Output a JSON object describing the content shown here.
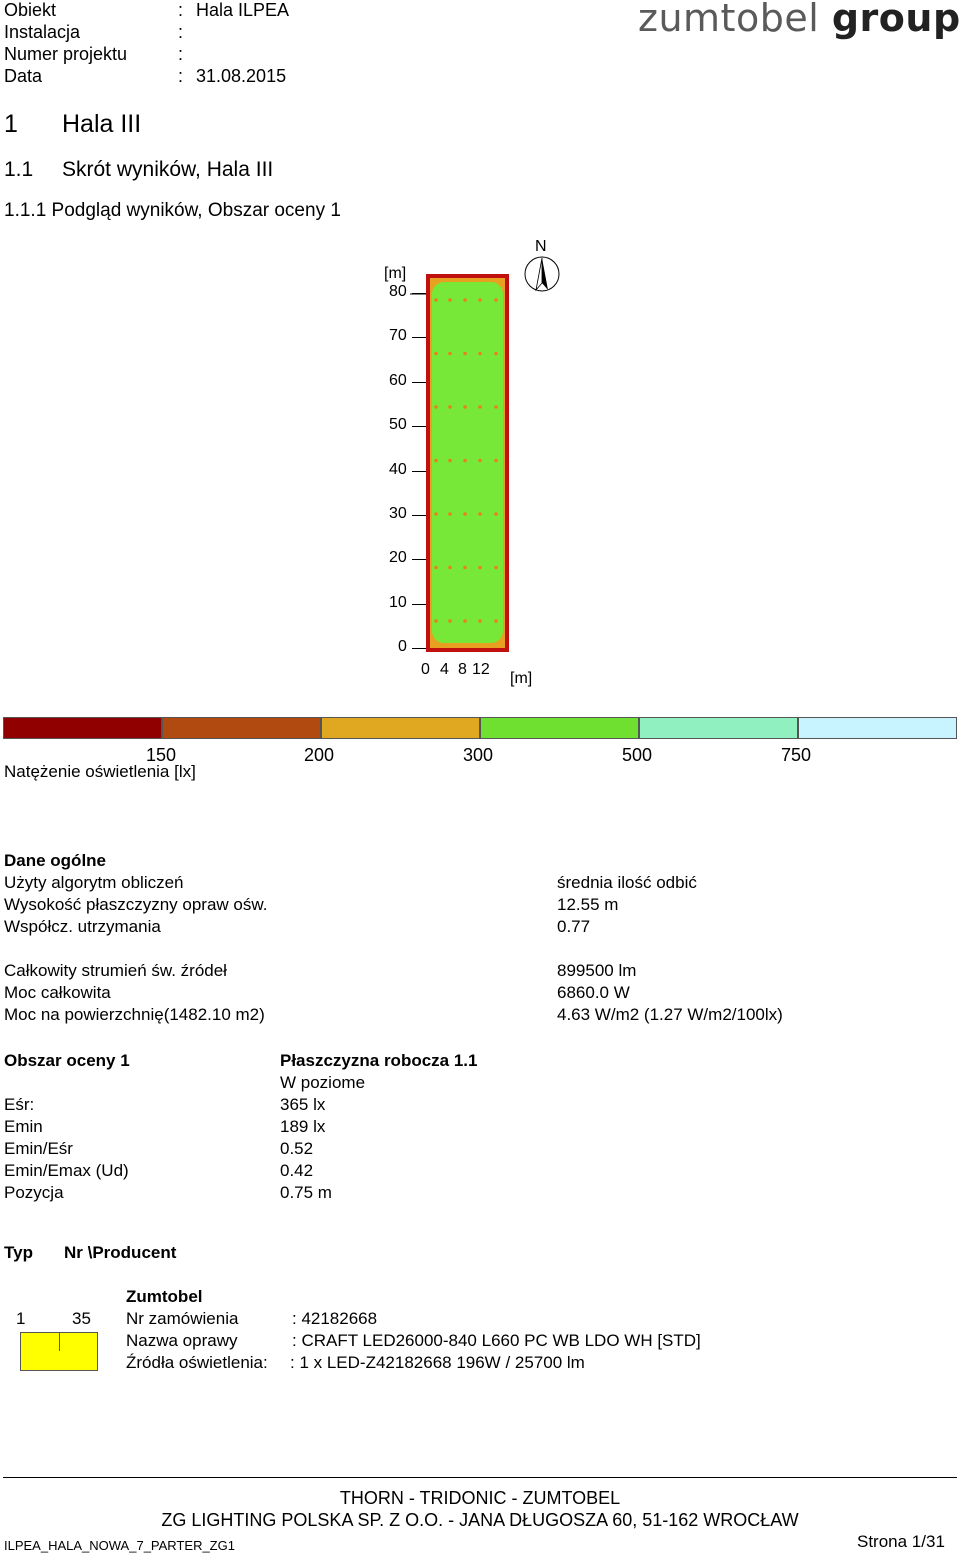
{
  "header": {
    "rows": [
      {
        "label": "Obiekt",
        "sep": ":",
        "value": "Hala ILPEA"
      },
      {
        "label": "Instalacja",
        "sep": ":",
        "value": ""
      },
      {
        "label": "Numer projektu",
        "sep": ":",
        "value": ""
      },
      {
        "label": "Data",
        "sep": ":",
        "value": "31.08.2015"
      }
    ],
    "logo_main": "zumtobel",
    "logo_group": "group"
  },
  "headings": {
    "h1_num": "1",
    "h1_text": "Hala III",
    "h2_num": "1.1",
    "h2_text": "Skrót wyników, Hala III",
    "h3": "1.1.1 Podgląd wyników, Obszar oceny 1"
  },
  "plan": {
    "y_unit": "[m]",
    "y_ticks": [
      "80",
      "70",
      "60",
      "50",
      "40",
      "30",
      "20",
      "10",
      "0"
    ],
    "x_ticks": [
      "0",
      "4",
      "8",
      "12"
    ],
    "x_unit": "[m]",
    "north": "N",
    "colors": {
      "border": "#c01010",
      "outer": "#e8a020",
      "inner": "#78e838"
    }
  },
  "legend": {
    "colors": [
      "#900000",
      "#b04a10",
      "#e0a820",
      "#70e030",
      "#90f0c0",
      "#c8f4ff"
    ],
    "labels": [
      "150",
      "200",
      "300",
      "500",
      "750"
    ],
    "title": "Natężenie oświetlenia [lx]"
  },
  "general": {
    "title": "Dane ogólne",
    "rows": [
      {
        "label": "Użyty algorytm obliczeń",
        "value": "średnia ilość odbić"
      },
      {
        "label": "Wysokość płaszczyzny opraw ośw.",
        "value": "12.55 m"
      },
      {
        "label": "Współcz. utrzymania",
        "value": "0.77"
      },
      {
        "label": "Całkowity strumień św. źródeł",
        "value": "899500 lm"
      },
      {
        "label": "Moc całkowita",
        "value": "6860.0 W"
      },
      {
        "label": "Moc na powierzchnię(1482.10 m2)",
        "value": "4.63 W/m2 (1.27 W/m2/100lx)"
      }
    ]
  },
  "area": {
    "title": "Obszar oceny 1",
    "plane_title": "Płaszczyzna robocza 1.1",
    "plane_sub": "W poziome",
    "rows": [
      {
        "label": "Eśr:",
        "value": "365 lx"
      },
      {
        "label": "Emin",
        "value": "189 lx"
      },
      {
        "label": "Emin/Eśr",
        "value": "0.52"
      },
      {
        "label": "Emin/Emax (Ud)",
        "value": "0.42"
      },
      {
        "label": "Pozycja",
        "value": "0.75 m"
      }
    ]
  },
  "luminaires": {
    "col_type": "Typ",
    "col_nr": "Nr \\Producent",
    "producer": "Zumtobel",
    "type": "1",
    "count": "35",
    "order_label": "Nr zamówienia",
    "order_value": ": 42182668",
    "name_label": "Nazwa oprawy",
    "name_value": ": CRAFT LED26000-840 L660 PC WB LDO WH [STD]",
    "source_label": "Źródła oświetlenia:",
    "source_value": ": 1 x LED-Z42182668 196W / 25700 lm",
    "icon_color": "#ffff00"
  },
  "footer": {
    "line1": "THORN - TRIDONIC - ZUMTOBEL",
    "line2": "ZG LIGHTING POLSKA SP. Z O.O. - JANA DŁUGOSZA 60, 51-162 WROCŁAW",
    "file": "ILPEA_HALA_NOWA_7_PARTER_ZG1",
    "page": "Strona 1/31"
  }
}
